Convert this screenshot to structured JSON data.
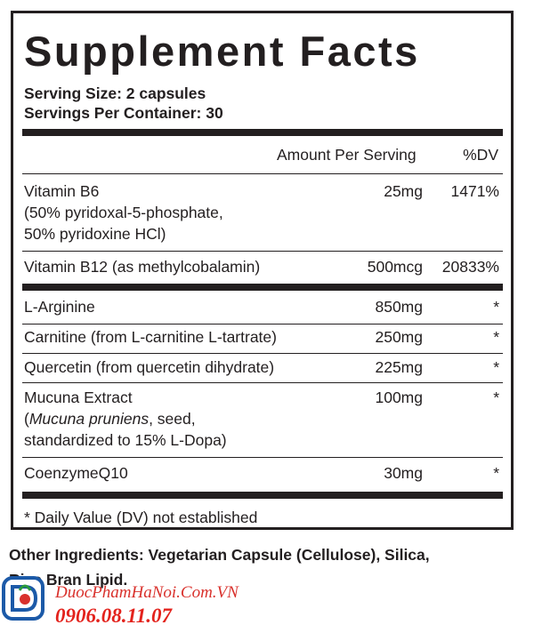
{
  "title": "Supplement Facts",
  "serving_size": "Serving Size: 2 capsules",
  "servings_per_container": "Servings Per Container: 30",
  "header": {
    "amount": "Amount Per Serving",
    "dv": "%DV"
  },
  "rows": [
    {
      "name_lines": [
        "Vitamin B6",
        "(50% pyridoxal-5-phosphate,",
        "50% pyridoxine HCl)"
      ],
      "amount": "25mg",
      "dv": "1471%"
    },
    {
      "name_lines": [
        "Vitamin B12 (as methylcobalamin)"
      ],
      "amount": "500mcg",
      "dv": "20833%"
    },
    {
      "name_lines": [
        "L-Arginine"
      ],
      "amount": "850mg",
      "dv": "*"
    },
    {
      "name_lines": [
        "Carnitine (from L-carnitine L-tartrate)"
      ],
      "amount": "250mg",
      "dv": "*"
    },
    {
      "name_lines": [
        "Quercetin (from quercetin dihydrate)"
      ],
      "amount": "225mg",
      "dv": "*"
    },
    {
      "name_lines": [
        "Mucuna Extract",
        "pruniens",
        "standardized to 15% L-Dopa)"
      ],
      "name_line2_prefix": "(",
      "name_line2_italic": "Mucuna pruniens",
      "name_line2_suffix": ", seed,",
      "amount": "100mg",
      "dv": "*"
    },
    {
      "name_lines": [
        "CoenzymeQ10"
      ],
      "amount": "30mg",
      "dv": "*"
    }
  ],
  "footnote": "* Daily Value (DV) not established",
  "other_ingredients": {
    "line1": "Other Ingredients: Vegetarian Capsule (Cellulose), Silica,",
    "line2": "Rice Bran Lipid."
  },
  "watermark": {
    "site": "DuocPhamHaNoi.Com.VN",
    "phone": "0906.08.11.07",
    "logo_icon": "pharmacy-logo-icon"
  },
  "colors": {
    "ink": "#231f20",
    "watermark_red": "#e3221c",
    "logo_blue": "#1c5aa8"
  }
}
